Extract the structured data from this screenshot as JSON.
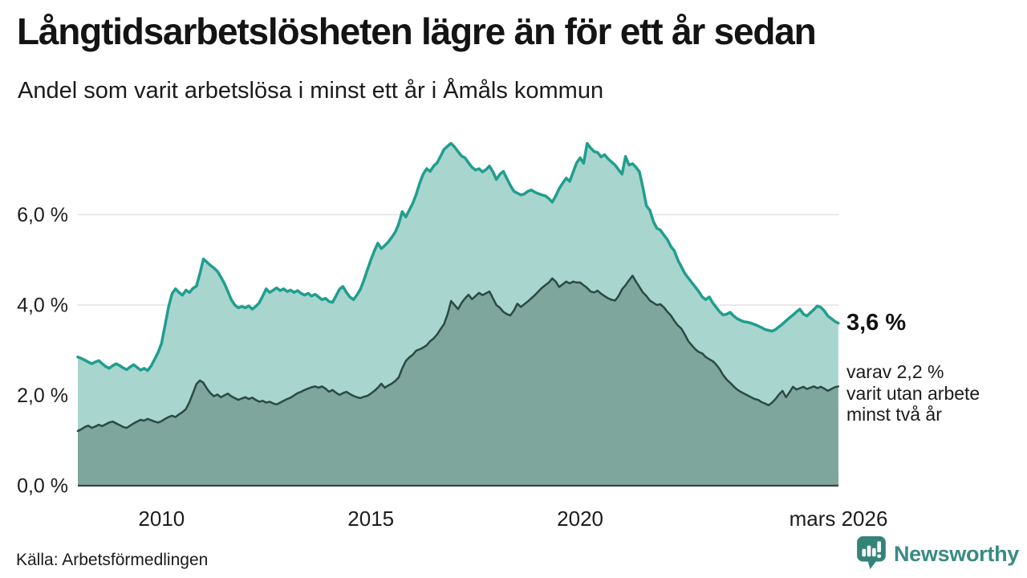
{
  "header": {
    "title": "Långtidsarbetslösheten lägre än för ett år sedan",
    "subtitle": "Andel som varit arbetslösa i minst ett år i Åmåls kommun"
  },
  "annotation": {
    "value_label": "3,6 %",
    "note_lines": [
      "varav 2,2 %",
      "varit utan arbete",
      "minst två år"
    ]
  },
  "source": {
    "label": "Källa: Arbetsförmedlingen"
  },
  "logo": {
    "name": "Newsworthy",
    "text_color": "#3a8b82",
    "icon_color": "#338379"
  },
  "colors": {
    "grid": "#e2e2e2",
    "axis": "#3f3f3f",
    "tick_text": "#1d1d1d"
  },
  "chart_data": {
    "type": "area",
    "title": "Långtidsarbetslösheten lägre än för ett år sedan",
    "subtitle": "Andel som varit arbetslösa i minst ett år i Åmåls kommun",
    "xlabel": "",
    "ylabel": "",
    "x_unit": "decimal year, monthly samples",
    "x_start": 2008.0,
    "x_step_months": 1,
    "xlim": [
      2008.0,
      2026.17
    ],
    "ylim": [
      0,
      8
    ],
    "grid": true,
    "legend_position": "none",
    "yticks": [
      {
        "v": 0,
        "label": "0,0 %"
      },
      {
        "v": 2,
        "label": "2,0 %"
      },
      {
        "v": 4,
        "label": "4,0 %"
      },
      {
        "v": 6,
        "label": "6,0 %"
      }
    ],
    "xticks": [
      {
        "t": 2010,
        "label": "2010"
      },
      {
        "t": 2015,
        "label": "2015"
      },
      {
        "t": 2020,
        "label": "2020"
      },
      {
        "t": 2026.17,
        "label": "mars 2026"
      }
    ],
    "series": [
      {
        "name": "Andel arbetslösa minst ett år",
        "stroke": "#1f9e8e",
        "fill": "#a8d5ce",
        "stroke_width": 3.5,
        "end_value_label": "3,6 %",
        "values": [
          2.85,
          2.82,
          2.78,
          2.74,
          2.7,
          2.74,
          2.77,
          2.7,
          2.64,
          2.6,
          2.66,
          2.7,
          2.66,
          2.61,
          2.57,
          2.63,
          2.68,
          2.62,
          2.56,
          2.6,
          2.55,
          2.65,
          2.8,
          2.95,
          3.15,
          3.55,
          3.95,
          4.25,
          4.36,
          4.28,
          4.22,
          4.33,
          4.28,
          4.37,
          4.42,
          4.7,
          5.02,
          4.95,
          4.88,
          4.82,
          4.75,
          4.62,
          4.48,
          4.3,
          4.12,
          4.0,
          3.94,
          3.97,
          3.94,
          3.98,
          3.91,
          3.97,
          4.05,
          4.2,
          4.36,
          4.28,
          4.33,
          4.38,
          4.32,
          4.36,
          4.3,
          4.33,
          4.28,
          4.32,
          4.26,
          4.22,
          4.26,
          4.2,
          4.24,
          4.18,
          4.12,
          4.15,
          4.08,
          4.06,
          4.2,
          4.35,
          4.41,
          4.28,
          4.18,
          4.12,
          4.22,
          4.35,
          4.55,
          4.78,
          5.0,
          5.2,
          5.37,
          5.25,
          5.32,
          5.4,
          5.5,
          5.62,
          5.8,
          6.07,
          5.95,
          6.1,
          6.25,
          6.45,
          6.7,
          6.9,
          7.02,
          6.96,
          7.08,
          7.15,
          7.3,
          7.45,
          7.52,
          7.58,
          7.5,
          7.4,
          7.3,
          7.26,
          7.15,
          7.05,
          6.99,
          7.02,
          6.95,
          7.0,
          7.08,
          6.95,
          6.78,
          6.9,
          6.96,
          6.8,
          6.65,
          6.52,
          6.48,
          6.44,
          6.46,
          6.52,
          6.55,
          6.5,
          6.47,
          6.44,
          6.42,
          6.36,
          6.28,
          6.42,
          6.58,
          6.7,
          6.81,
          6.74,
          6.95,
          7.15,
          7.26,
          7.14,
          7.58,
          7.48,
          7.4,
          7.38,
          7.28,
          7.33,
          7.24,
          7.17,
          7.1,
          7.0,
          6.9,
          7.29,
          7.1,
          7.13,
          7.05,
          6.95,
          6.6,
          6.2,
          6.1,
          5.85,
          5.7,
          5.66,
          5.55,
          5.45,
          5.3,
          5.2,
          5.0,
          4.85,
          4.7,
          4.6,
          4.5,
          4.4,
          4.3,
          4.18,
          4.12,
          4.18,
          4.05,
          3.95,
          3.85,
          3.78,
          3.8,
          3.84,
          3.76,
          3.7,
          3.66,
          3.63,
          3.62,
          3.6,
          3.57,
          3.54,
          3.5,
          3.46,
          3.44,
          3.42,
          3.46,
          3.52,
          3.58,
          3.65,
          3.72,
          3.78,
          3.85,
          3.91,
          3.8,
          3.76,
          3.83,
          3.9,
          3.98,
          3.95,
          3.87,
          3.76,
          3.7,
          3.64,
          3.6
        ]
      },
      {
        "name": "Andel arbetslösa minst två år",
        "stroke": "#2a4a43",
        "fill": "#7ea69c",
        "stroke_width": 2.5,
        "end_value_label": "2,2 %",
        "values": [
          1.21,
          1.25,
          1.3,
          1.33,
          1.28,
          1.31,
          1.35,
          1.32,
          1.36,
          1.4,
          1.42,
          1.38,
          1.34,
          1.3,
          1.28,
          1.33,
          1.38,
          1.42,
          1.46,
          1.44,
          1.48,
          1.45,
          1.42,
          1.4,
          1.43,
          1.48,
          1.52,
          1.55,
          1.52,
          1.58,
          1.63,
          1.7,
          1.85,
          2.05,
          2.25,
          2.33,
          2.28,
          2.15,
          2.05,
          1.98,
          2.02,
          1.96,
          2.0,
          2.04,
          1.98,
          1.94,
          1.9,
          1.93,
          1.96,
          1.92,
          1.95,
          1.9,
          1.86,
          1.88,
          1.84,
          1.86,
          1.82,
          1.8,
          1.84,
          1.88,
          1.92,
          1.95,
          2.0,
          2.05,
          2.08,
          2.12,
          2.15,
          2.18,
          2.2,
          2.17,
          2.2,
          2.15,
          2.08,
          2.12,
          2.06,
          2.01,
          2.05,
          2.08,
          2.03,
          1.99,
          1.96,
          1.94,
          1.97,
          1.99,
          2.04,
          2.1,
          2.17,
          2.26,
          2.17,
          2.22,
          2.26,
          2.32,
          2.4,
          2.6,
          2.76,
          2.84,
          2.9,
          2.99,
          3.02,
          3.06,
          3.11,
          3.2,
          3.26,
          3.35,
          3.47,
          3.58,
          3.8,
          4.09,
          4.0,
          3.91,
          4.05,
          4.15,
          4.23,
          4.13,
          4.2,
          4.27,
          4.22,
          4.26,
          4.3,
          4.15,
          4.0,
          3.94,
          3.85,
          3.8,
          3.77,
          3.88,
          4.03,
          3.96,
          4.02,
          4.08,
          4.15,
          4.22,
          4.3,
          4.38,
          4.44,
          4.5,
          4.59,
          4.52,
          4.4,
          4.46,
          4.52,
          4.48,
          4.52,
          4.5,
          4.5,
          4.44,
          4.38,
          4.3,
          4.28,
          4.32,
          4.25,
          4.2,
          4.15,
          4.12,
          4.1,
          4.2,
          4.35,
          4.44,
          4.55,
          4.65,
          4.52,
          4.4,
          4.28,
          4.2,
          4.1,
          4.05,
          4.0,
          4.02,
          3.95,
          3.85,
          3.77,
          3.65,
          3.55,
          3.48,
          3.35,
          3.2,
          3.11,
          3.02,
          2.96,
          2.93,
          2.85,
          2.8,
          2.76,
          2.68,
          2.58,
          2.45,
          2.35,
          2.28,
          2.2,
          2.13,
          2.08,
          2.04,
          2.0,
          1.96,
          1.92,
          1.9,
          1.85,
          1.82,
          1.78,
          1.84,
          1.92,
          2.02,
          2.1,
          1.96,
          2.07,
          2.19,
          2.13,
          2.16,
          2.19,
          2.14,
          2.17,
          2.2,
          2.16,
          2.19,
          2.15,
          2.1,
          2.14,
          2.18,
          2.2
        ]
      }
    ]
  }
}
